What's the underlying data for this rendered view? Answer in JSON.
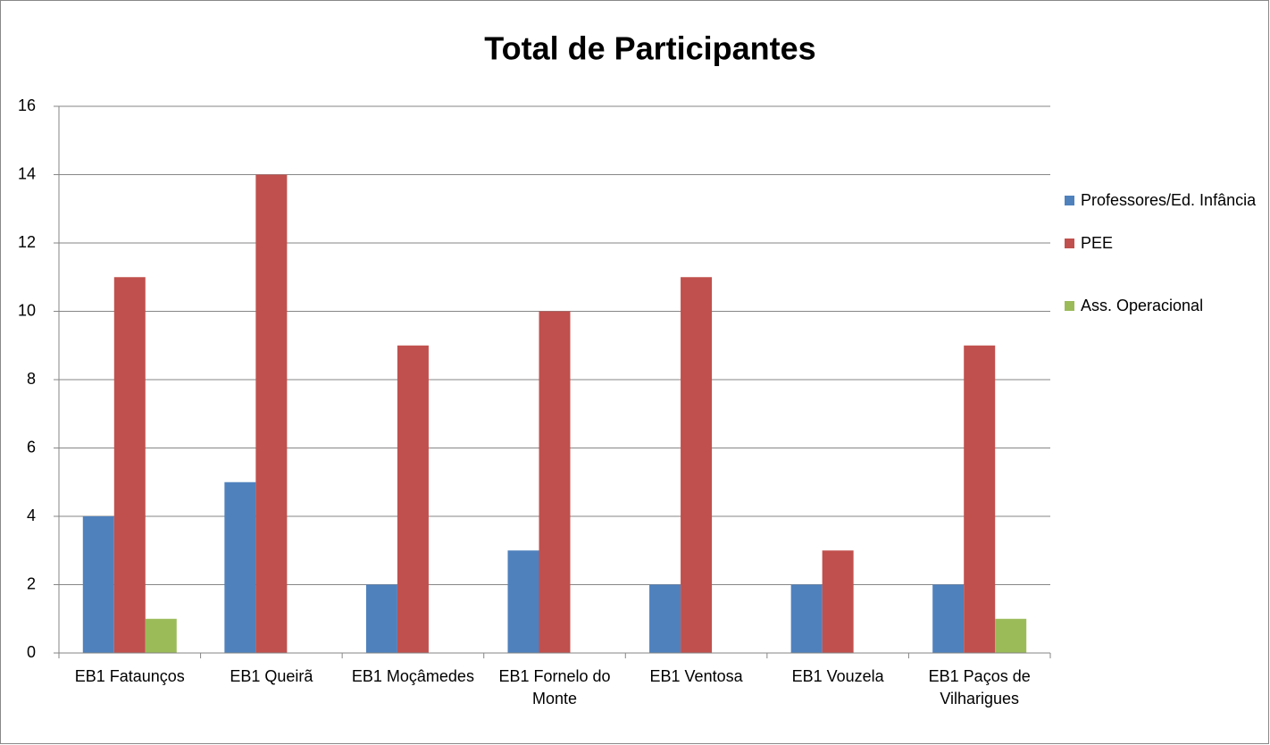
{
  "chart_data": {
    "type": "bar",
    "title": "Total de Participantes",
    "categories": [
      "EB1 Fataunços",
      "EB1 Queirã",
      "EB1 Moçâmedes",
      "EB1 Fornelo do Monte",
      "EB1 Ventosa",
      "EB1 Vouzela",
      "EB1 Paços de Vilharigues"
    ],
    "series": [
      {
        "name": "Professores/Ed. Infância",
        "color": "#4f81bd",
        "values": [
          4,
          5,
          2,
          3,
          2,
          2,
          2
        ]
      },
      {
        "name": "PEE",
        "color": "#c0504d",
        "values": [
          11,
          14,
          9,
          10,
          11,
          3,
          9
        ]
      },
      {
        "name": "Ass. Operacional",
        "color": "#9bbb59",
        "values": [
          1,
          0,
          0,
          0,
          0,
          0,
          1
        ]
      }
    ],
    "ylim": [
      0,
      16
    ],
    "yticks": [
      0,
      2,
      4,
      6,
      8,
      10,
      12,
      14,
      16
    ],
    "grid": true,
    "legend": "right"
  }
}
